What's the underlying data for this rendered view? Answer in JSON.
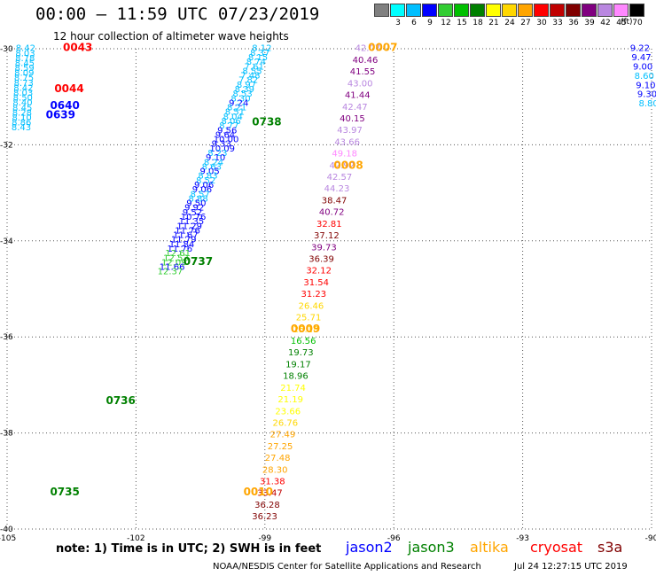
{
  "header": {
    "title": "00:00 – 11:59 UTC 07/23/2019",
    "subtitle": "12 hour collection of altimeter wave heights"
  },
  "scale": {
    "labels": [
      "3",
      "6",
      "9",
      "12",
      "15",
      "18",
      "21",
      "24",
      "27",
      "30",
      "33",
      "36",
      "39",
      "42",
      "45",
      "70"
    ],
    "unit": "(ft)",
    "colors": [
      "#808080",
      "#00ffff",
      "#00bfff",
      "#0000ff",
      "#32cd32",
      "#00c000",
      "#008000",
      "#ffff00",
      "#ffd700",
      "#ffa500",
      "#ff0000",
      "#c00000",
      "#800000",
      "#800080",
      "#b987e0",
      "#ff88ff",
      "#000000"
    ]
  },
  "note": "note: 1) Time is in UTC; 2) SWH is in feet",
  "legend": [
    {
      "name": "jason2",
      "color": "#0000ff"
    },
    {
      "name": "jason3",
      "color": "#008000"
    },
    {
      "name": "altika",
      "color": "#ffa500"
    },
    {
      "name": "cryosat",
      "color": "#ff0000"
    },
    {
      "name": "s3a",
      "color": "#800000"
    }
  ],
  "footer": "NOAA/NESDIS Center for Satellite Applications and Research",
  "footer_time": "Jul 24 12:27:15 UTC 2019",
  "chart_data": {
    "type": "scatter",
    "xlim": [
      -105,
      -90
    ],
    "ylim": [
      -40,
      -30
    ],
    "x_ticks": [
      -105,
      -102,
      -99,
      -96,
      -93,
      -90
    ],
    "x_tick_labels": [
      "-105",
      "-102",
      "-99",
      "-96",
      "-93",
      "-90"
    ],
    "y_ticks": [
      -30,
      -32,
      -34,
      -36,
      -38,
      -40
    ],
    "y_tick_labels": [
      "-30",
      "-32",
      "-34",
      "-36",
      "-38",
      "-40"
    ],
    "grid": true,
    "time_labels": [
      {
        "label": "0043",
        "lon": -103.7,
        "lat": -30.05,
        "color": "#ff0000"
      },
      {
        "label": "0044",
        "lon": -103.9,
        "lat": -30.9,
        "color": "#ff0000"
      },
      {
        "label": "0640",
        "lon": -104.0,
        "lat": -31.25,
        "color": "#0000ff"
      },
      {
        "label": "0639",
        "lon": -104.1,
        "lat": -31.45,
        "color": "#0000ff"
      },
      {
        "label": "0738",
        "lon": -99.3,
        "lat": -31.6,
        "color": "#008000"
      },
      {
        "label": "0007",
        "lon": -96.6,
        "lat": -30.05,
        "color": "#ffa500"
      },
      {
        "label": "0008",
        "lon": -97.4,
        "lat": -32.5,
        "color": "#ffa500"
      },
      {
        "label": "0737",
        "lon": -100.9,
        "lat": -34.5,
        "color": "#008000"
      },
      {
        "label": "0009",
        "lon": -98.4,
        "lat": -35.9,
        "color": "#ffa500"
      },
      {
        "label": "0736",
        "lon": -102.7,
        "lat": -37.4,
        "color": "#008000"
      },
      {
        "label": "0735",
        "lon": -104.0,
        "lat": -39.3,
        "color": "#008000"
      },
      {
        "label": "0010",
        "lon": -99.5,
        "lat": -39.3,
        "color": "#ffa500"
      }
    ],
    "series": [
      {
        "name": "jason3",
        "lon_start": -99.3,
        "lat_start": -30.05,
        "lon_end": -101.5,
        "lat_end": -34.7,
        "values": [
          8.12,
          8.37,
          8.15,
          8.74,
          7.61,
          8.55,
          7.48,
          7.82,
          8.97,
          8.39,
          8.53,
          8.3,
          9.24,
          8.21,
          8.51,
          8.04,
          8.06,
          8.77,
          9.56,
          9.64,
          10.0,
          9.33,
          10.09,
          8.23,
          9.1,
          8.24,
          8.63,
          9.05,
          8.83,
          8.52,
          9.06,
          9.06,
          8.57,
          8.88,
          9.5,
          9.92,
          9.52,
          10.76,
          11.35,
          11.29,
          11.76,
          11.67,
          11.79,
          11.84,
          11.76,
          12.61,
          12.53,
          12.09,
          11.66,
          12.37
        ]
      },
      {
        "name": "jason2",
        "lon_start": -104.8,
        "lat_start": -30.05,
        "lon_end": -104.9,
        "lat_end": -31.7,
        "values": [
          8.42,
          8.03,
          8.78,
          8.45,
          8.59,
          8.09,
          8.75,
          8.73,
          8.42,
          8.03,
          8.5,
          8.4,
          8.45,
          8.28,
          8.1,
          8.86,
          8.43
        ]
      },
      {
        "name": "altika",
        "lon_start": -96.9,
        "lat_start": -30.05,
        "lon_end": -99.3,
        "lat_end": -39.8,
        "values": [
          42.07,
          40.46,
          41.55,
          43.0,
          41.44,
          42.47,
          40.15,
          43.97,
          43.66,
          49.18,
          42.92,
          42.57,
          44.23,
          38.47,
          40.72,
          32.81,
          37.12,
          39.73,
          36.39,
          32.12,
          31.54,
          31.23,
          26.46,
          25.71,
          25.18,
          16.56,
          19.73,
          19.17,
          18.96,
          21.74,
          21.19,
          23.66,
          26.76,
          27.49,
          27.25,
          27.48,
          28.3,
          31.38,
          33.47,
          36.28,
          36.23
        ]
      },
      {
        "name": "s3a",
        "lon_start": -90.5,
        "lat_start": -30.05,
        "lon_end": -90.3,
        "lat_end": -31.2,
        "values": [
          9.22,
          9.47,
          9.0,
          8.6,
          9.1,
          9.3,
          8.8
        ]
      }
    ]
  }
}
